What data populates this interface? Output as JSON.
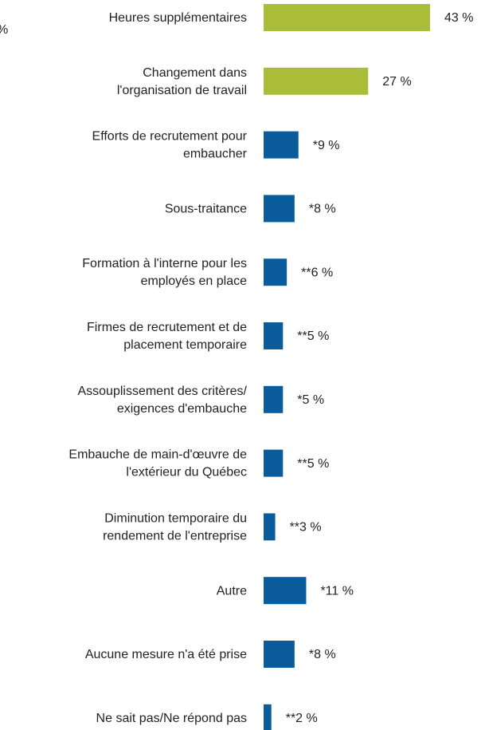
{
  "chart_data": {
    "type": "hbar",
    "annotation": "%",
    "categories": [
      "Heures supplémentaires",
      "Changement dans\nl'organisation de travail",
      "Efforts de recrutement pour\nembaucher",
      "Sous-traitance",
      "Formation à l'interne pour les\nemployés en place",
      "Firmes de recrutement et de\nplacement temporaire",
      "Assouplissement des critères/\nexigences d'embauche",
      "Embauche de main-d'œuvre de\nl'extérieur du Québec",
      "Diminution temporaire du\nrendement de l'entreprise",
      "Autre",
      "Aucune mesure n'a été prise",
      "Ne sait pas/Ne répond pas"
    ],
    "values": [
      43,
      27,
      9,
      8,
      6,
      5,
      5,
      5,
      3,
      11,
      8,
      2
    ],
    "value_labels": [
      "43 %",
      "27 %",
      "*9 %",
      "*8 %",
      "**6 %",
      "**5 %",
      "*5 %",
      "**5 %",
      "**3 %",
      "*11 %",
      "*8 %",
      "**2 %"
    ],
    "colors": [
      "#a9bd38",
      "#a9bd38",
      "#0b5c9a",
      "#0b5c9a",
      "#0b5c9a",
      "#0b5c9a",
      "#0b5c9a",
      "#0b5c9a",
      "#0b5c9a",
      "#0b5c9a",
      "#0b5c9a",
      "#0b5c9a"
    ]
  }
}
